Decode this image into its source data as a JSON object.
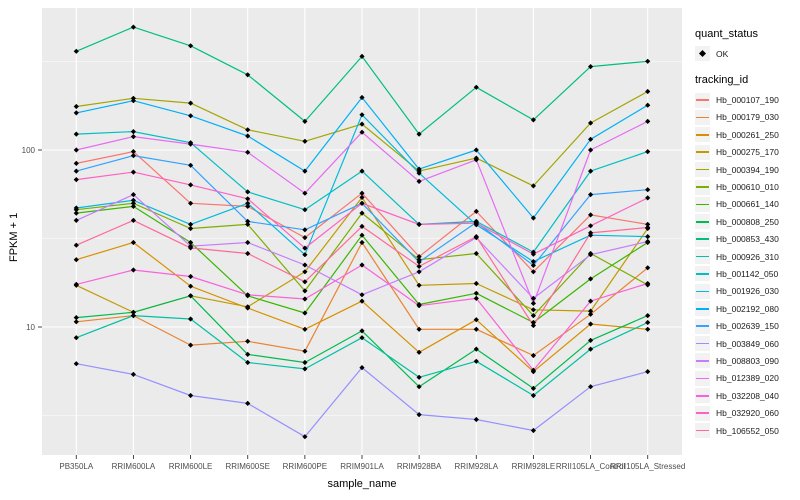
{
  "chart_data": {
    "type": "line",
    "title": "",
    "xlabel": "sample_name",
    "ylabel": "FPKM + 1",
    "y_scale": "log10",
    "grid": true,
    "legend_position": "right",
    "panel_bg": "#EBEBEB",
    "grid_color": "#FFFFFF",
    "tick_color": "#333333",
    "tick_label_color": "#4D4D4D",
    "marker": "diamond",
    "marker_color": "#000000",
    "ylim": [
      1.9,
      630
    ],
    "y_ticks": [
      {
        "value": 100,
        "label": "100"
      },
      {
        "value": 10,
        "label": "10"
      }
    ],
    "y_minor": [
      3.162,
      31.62,
      316.2
    ],
    "categories": [
      "PB350LA",
      "RRIM600LA",
      "RRIM600LE",
      "RRIM600SE",
      "RRIM600PE",
      "RRIM901LA",
      "RRIM928BA",
      "RRIM928LA",
      "RRIM928LE",
      "RRII105LA_Control",
      "RRII105LA_Stressed"
    ],
    "legend": {
      "quant_status_title": "quant_status",
      "quant_items": [
        "OK"
      ],
      "tracking_id_title": "tracking_id"
    },
    "series": [
      {
        "name": "Hb_000107_190",
        "color": "#F8766D",
        "values": [
          84,
          98,
          50,
          48,
          32,
          57,
          25,
          45,
          20.5,
          43,
          38
        ]
      },
      {
        "name": "Hb_000179_030",
        "color": "#EA8331",
        "values": [
          10.7,
          11.6,
          7.9,
          8.3,
          7.3,
          30,
          9.7,
          9.7,
          6.9,
          11.8,
          21.6
        ]
      },
      {
        "name": "Hb_000261_250",
        "color": "#D89000",
        "values": [
          24,
          30,
          17,
          12.8,
          9.7,
          14,
          7.2,
          11,
          5.6,
          10.4,
          9.7
        ]
      },
      {
        "name": "Hb_000275_170",
        "color": "#C09B00",
        "values": [
          17.2,
          12.1,
          15,
          13,
          20.5,
          54,
          17.2,
          17.6,
          12.5,
          12.3,
          36
        ]
      },
      {
        "name": "Hb_000394_190",
        "color": "#A3A500",
        "values": [
          176,
          196,
          184,
          130,
          112,
          140,
          76,
          90,
          62.7,
          142,
          214
        ]
      },
      {
        "name": "Hb_000610_010",
        "color": "#7CAE00",
        "values": [
          46,
          50,
          36,
          38,
          16,
          44,
          24,
          26,
          11.6,
          26,
          17.3
        ]
      },
      {
        "name": "Hb_000661_140",
        "color": "#39B600",
        "values": [
          44,
          48,
          30,
          15,
          12,
          33,
          13.4,
          15.5,
          10.6,
          18.7,
          30
        ]
      },
      {
        "name": "Hb_000808_250",
        "color": "#00BB4E",
        "values": [
          11.3,
          12.1,
          15,
          7,
          6.3,
          9.5,
          4.6,
          7.5,
          4.5,
          8.4,
          11.6
        ]
      },
      {
        "name": "Hb_000853_430",
        "color": "#00BF7D",
        "values": [
          361,
          495,
          388,
          266,
          145,
          338,
          123,
          226,
          148,
          296,
          317
        ]
      },
      {
        "name": "Hb_000926_310",
        "color": "#00C1A3",
        "values": [
          8.7,
          11.6,
          11.1,
          6.3,
          5.8,
          8.7,
          5.2,
          6.4,
          4.1,
          7.5,
          10.6
        ]
      },
      {
        "name": "Hb_001142_050",
        "color": "#00BFC4",
        "values": [
          123,
          127,
          110,
          58,
          46,
          76,
          38,
          39.5,
          26.5,
          76,
          98
        ]
      },
      {
        "name": "Hb_001926_030",
        "color": "#00BAE0",
        "values": [
          47,
          52,
          38,
          50,
          25.6,
          158,
          74,
          37.8,
          23.4,
          33,
          32.4
        ]
      },
      {
        "name": "Hb_002192_080",
        "color": "#00B0F6",
        "values": [
          162,
          190,
          156,
          120,
          76,
          198,
          78,
          100,
          41.3,
          115,
          179
        ]
      },
      {
        "name": "Hb_002639_150",
        "color": "#35A2FF",
        "values": [
          76,
          93,
          82,
          39.5,
          35.4,
          50,
          23.3,
          39,
          22.3,
          56,
          59.7
        ]
      },
      {
        "name": "Hb_003849_060",
        "color": "#9590FF",
        "values": [
          6.2,
          5.4,
          4.1,
          3.7,
          2.4,
          5.9,
          3.2,
          3,
          2.6,
          4.6,
          5.6
        ]
      },
      {
        "name": "Hb_008803_090",
        "color": "#C77CFF",
        "values": [
          40,
          56,
          28.6,
          30,
          22.4,
          15.2,
          20.5,
          32,
          14.5,
          25.6,
          30.4
        ]
      },
      {
        "name": "Hb_012389_020",
        "color": "#E76BF3",
        "values": [
          100,
          119,
          108,
          97,
          57,
          126,
          66.5,
          88,
          13.6,
          100,
          145
        ]
      },
      {
        "name": "Hb_032208_040",
        "color": "#FA62DB",
        "values": [
          17.4,
          21,
          19.3,
          15.2,
          14.4,
          22.4,
          13.2,
          14.5,
          5.7,
          14,
          17.6
        ]
      },
      {
        "name": "Hb_032920_060",
        "color": "#FF61C3",
        "values": [
          68,
          75,
          63.5,
          53,
          27.9,
          50,
          38,
          38.6,
          25.8,
          37.3,
          53.6
        ]
      },
      {
        "name": "Hb_106552_050",
        "color": "#FF6A98",
        "values": [
          29,
          40,
          28,
          26,
          18,
          37,
          22,
          32.4,
          10.2,
          34,
          36.5
        ]
      }
    ]
  }
}
